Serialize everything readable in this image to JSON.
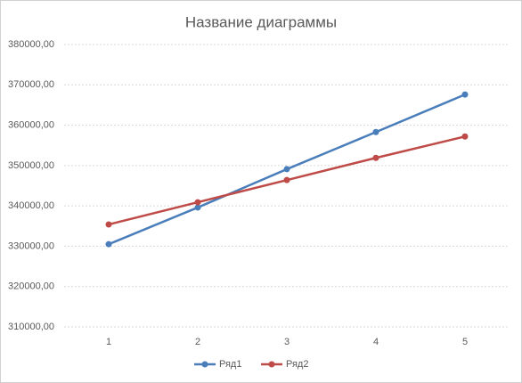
{
  "chart_data": {
    "type": "line",
    "title": "Название диаграммы",
    "categories": [
      "1",
      "2",
      "3",
      "4",
      "5"
    ],
    "series": [
      {
        "name": "Ряд1",
        "color": "#4a7ebb",
        "values": [
          330500,
          339600,
          349100,
          358300,
          367600
        ]
      },
      {
        "name": "Ряд2",
        "color": "#be4b48",
        "values": [
          335400,
          340900,
          346400,
          351900,
          357200
        ]
      }
    ],
    "ylim": [
      310000,
      380000
    ],
    "yticks": [
      {
        "value": 310000,
        "label": "310000,00"
      },
      {
        "value": 320000,
        "label": "320000,00"
      },
      {
        "value": 330000,
        "label": "330000,00"
      },
      {
        "value": 340000,
        "label": "340000,00"
      },
      {
        "value": 350000,
        "label": "350000,00"
      },
      {
        "value": 360000,
        "label": "360000,00"
      },
      {
        "value": 370000,
        "label": "370000,00"
      },
      {
        "value": 380000,
        "label": "380000,00"
      }
    ],
    "grid": true,
    "legend": "bottom"
  }
}
